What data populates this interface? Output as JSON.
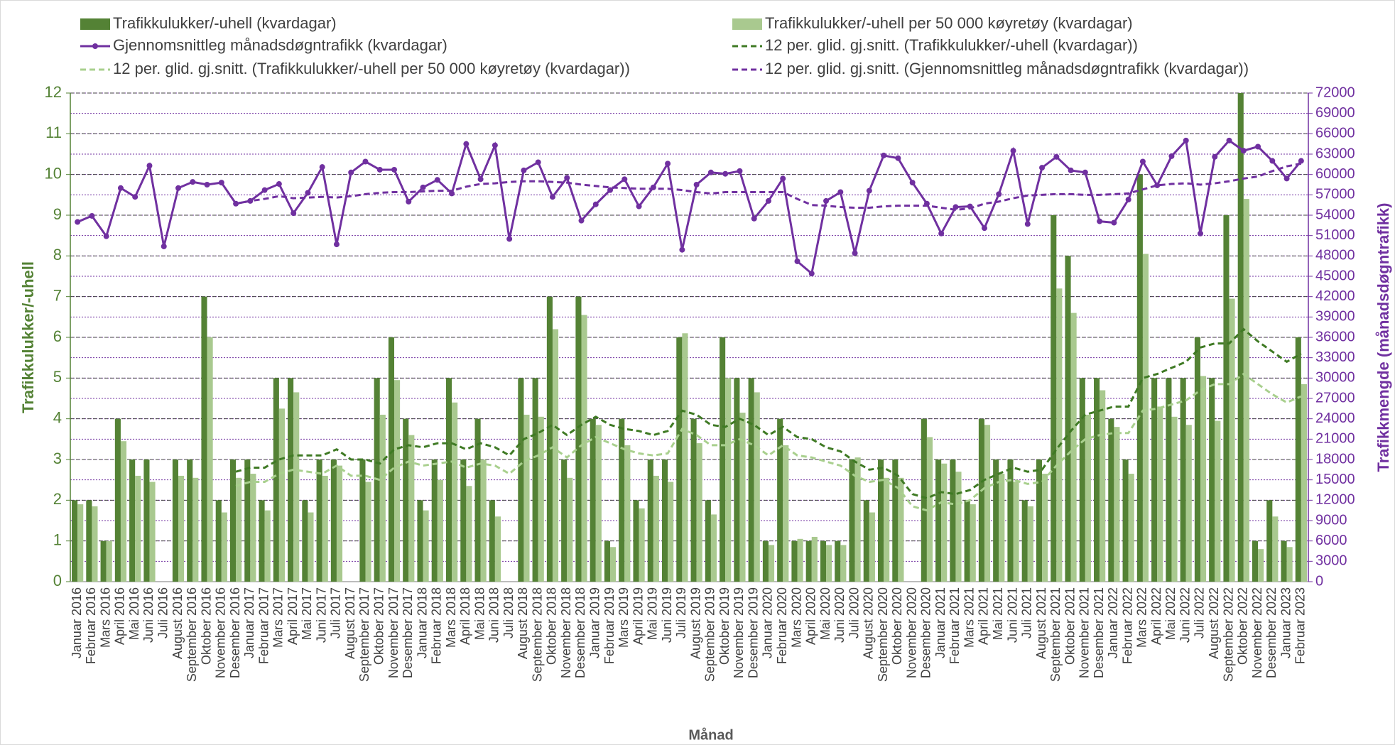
{
  "chart_data": {
    "type": "combo",
    "x_label": "Månad",
    "y_label": "Trafikkulukker/-uhell",
    "y2_label": "Trafikkmengde (månadsdøgntrafikk)",
    "categories": [
      "Januar 2016",
      "Februar 2016",
      "Mars 2016",
      "April 2016",
      "Mai 2016",
      "Juni 2016",
      "Juli 2016",
      "August 2016",
      "September 2016",
      "Oktober 2016",
      "November 2016",
      "Desember 2016",
      "Januar 2017",
      "Februar 2017",
      "Mars 2017",
      "April 2017",
      "Mai 2017",
      "Juni 2017",
      "Juli 2017",
      "August 2017",
      "September 2017",
      "Oktober 2017",
      "November 2017",
      "Desember 2017",
      "Januar 2018",
      "Februar 2018",
      "Mars 2018",
      "April 2018",
      "Mai 2018",
      "Juni 2018",
      "Juli 2018",
      "August 2018",
      "September 2018",
      "Oktober 2018",
      "November 2018",
      "Desember 2018",
      "Januar 2019",
      "Februar 2019",
      "Mars 2019",
      "April 2019",
      "Mai 2019",
      "Juni 2019",
      "Juli 2019",
      "August 2019",
      "September 2019",
      "Oktober 2019",
      "November 2019",
      "Desember 2019",
      "Januar 2020",
      "Februar 2020",
      "Mars 2020",
      "April 2020",
      "Mai 2020",
      "Juni 2020",
      "Juli 2020",
      "August 2020",
      "September 2020",
      "Oktober 2020",
      "November 2020",
      "Desember 2020",
      "Januar 2021",
      "Februar 2021",
      "Mars 2021",
      "April 2021",
      "Mai 2021",
      "Juni 2021",
      "Juli 2021",
      "August 2021",
      "September 2021",
      "Oktober 2021",
      "November 2021",
      "Desember 2021",
      "Januar 2022",
      "Februar 2022",
      "Mars 2022",
      "April 2022",
      "Mai 2022",
      "Juni 2022",
      "Juli 2022",
      "August 2022",
      "September 2022",
      "Oktober 2022",
      "November 2022",
      "Desember 2022",
      "Januar 2023",
      "Februar 2023"
    ],
    "ylim": [
      0,
      12
    ],
    "yticks": [
      0,
      1,
      2,
      3,
      4,
      5,
      6,
      7,
      8,
      9,
      10,
      11,
      12
    ],
    "y2lim": [
      0,
      72000
    ],
    "y2ticks": [
      0,
      3000,
      6000,
      9000,
      12000,
      15000,
      18000,
      21000,
      24000,
      27000,
      30000,
      33000,
      36000,
      39000,
      42000,
      45000,
      48000,
      51000,
      54000,
      57000,
      60000,
      63000,
      66000,
      69000,
      72000
    ],
    "grid": true,
    "series": [
      {
        "name": "Trafikkulukker/-uhell (kvardagar)",
        "kind": "bar",
        "color": "#548235",
        "values": [
          2,
          2,
          1,
          4,
          3,
          3,
          0,
          3,
          3,
          7,
          2,
          3,
          3,
          2,
          5,
          5,
          2,
          3,
          3,
          0,
          3,
          5,
          6,
          4,
          2,
          3,
          5,
          3,
          4,
          2,
          0,
          5,
          5,
          7,
          3,
          7,
          4,
          1,
          4,
          2,
          3,
          3,
          6,
          4,
          2,
          6,
          5,
          5,
          1,
          4,
          1,
          1,
          1,
          1,
          3,
          2,
          3,
          3,
          0,
          4,
          3,
          3,
          2,
          4,
          3,
          3,
          2,
          3,
          9,
          8,
          5,
          5,
          4,
          3,
          10,
          5,
          5,
          5,
          6,
          5,
          9,
          12,
          1,
          2,
          1,
          6
        ]
      },
      {
        "name": "Trafikkulukker/-uhell per 50 000 køyretøy (kvardagar)",
        "kind": "bar",
        "color": "#a9c98f",
        "values": [
          1.9,
          1.85,
          1.0,
          3.45,
          2.6,
          2.45,
          0,
          2.6,
          2.55,
          6.0,
          1.7,
          2.55,
          2.65,
          1.75,
          4.25,
          4.65,
          1.7,
          2.6,
          2.85,
          0,
          2.45,
          4.1,
          4.95,
          3.6,
          1.75,
          2.5,
          4.4,
          2.35,
          3.0,
          1.6,
          0,
          4.1,
          4.05,
          6.2,
          2.55,
          6.55,
          3.85,
          0.85,
          3.35,
          1.8,
          2.6,
          2.45,
          6.1,
          3.4,
          1.65,
          5.0,
          4.15,
          4.65,
          0.9,
          3.35,
          1.05,
          1.1,
          0.9,
          0.9,
          3.05,
          1.7,
          2.55,
          2.55,
          0,
          3.55,
          2.9,
          2.7,
          1.9,
          3.85,
          2.65,
          2.45,
          1.85,
          2.65,
          7.2,
          6.6,
          4.1,
          4.7,
          3.8,
          2.65,
          8.05,
          4.3,
          4.05,
          3.85,
          5.05,
          3.95,
          6.95,
          9.4,
          0.8,
          1.6,
          0.85,
          4.85
        ]
      },
      {
        "name": "Gjennomsnittleg månadsdøgntrafikk (kvardagar)",
        "kind": "line",
        "markers": true,
        "dashed": false,
        "axis": "y2",
        "color": "#7030a0",
        "values": [
          53000,
          53900,
          50900,
          58000,
          56700,
          61300,
          49400,
          58000,
          58900,
          58500,
          58800,
          55700,
          56100,
          57700,
          58600,
          54300,
          57300,
          61100,
          49700,
          60300,
          61900,
          60700,
          60700,
          56000,
          58100,
          59200,
          57200,
          64500,
          59300,
          64300,
          50500,
          60600,
          61800,
          56700,
          59500,
          53200,
          55600,
          57700,
          59300,
          55300,
          58100,
          61600,
          48900,
          58500,
          60300,
          60100,
          60500,
          53500,
          56100,
          59400,
          47200,
          45400,
          56100,
          57400,
          48400,
          57600,
          62800,
          62400,
          58800,
          55700,
          51300,
          55200,
          55300,
          52100,
          57100,
          63500,
          52700,
          61000,
          62600,
          60600,
          60300,
          53100,
          52900,
          56300,
          61900,
          58400,
          62700,
          65000,
          51300,
          62600,
          65000,
          63500,
          64100,
          62000,
          59400,
          62000
        ]
      },
      {
        "name": "12 per. glid. gj.snitt. (Trafikkulukker/-uhell (kvardagar))",
        "kind": "line",
        "markers": false,
        "dashed": true,
        "color": "#3f7a24",
        "values": [
          null,
          null,
          null,
          null,
          null,
          null,
          null,
          null,
          null,
          null,
          null,
          2.7,
          2.8,
          2.8,
          3.0,
          3.1,
          3.1,
          3.1,
          3.25,
          3.0,
          3.0,
          2.9,
          3.25,
          3.35,
          3.3,
          3.4,
          3.4,
          3.25,
          3.4,
          3.3,
          3.1,
          3.5,
          3.65,
          3.85,
          3.6,
          3.85,
          4.05,
          3.85,
          3.75,
          3.7,
          3.6,
          3.7,
          4.2,
          4.1,
          3.85,
          3.8,
          4.0,
          3.85,
          3.6,
          3.8,
          3.55,
          3.5,
          3.3,
          3.2,
          2.95,
          2.75,
          2.8,
          2.6,
          2.15,
          2.05,
          2.2,
          2.15,
          2.25,
          2.5,
          2.65,
          2.8,
          2.7,
          2.75,
          3.25,
          3.7,
          4.1,
          4.2,
          4.3,
          4.3,
          5.0,
          5.1,
          5.25,
          5.4,
          5.75,
          5.85,
          5.85,
          6.2,
          5.9,
          5.65,
          5.4,
          5.6
        ]
      },
      {
        "name": "12 per. glid. gj.snitt. (Trafikkulukker/-uhell per 50 000 køyretøy (kvardagar))",
        "kind": "line",
        "markers": false,
        "dashed": true,
        "color": "#a9d08e",
        "values": [
          null,
          null,
          null,
          null,
          null,
          null,
          null,
          null,
          null,
          null,
          null,
          2.35,
          2.45,
          2.45,
          2.65,
          2.75,
          2.7,
          2.65,
          2.85,
          2.6,
          2.6,
          2.5,
          2.8,
          2.95,
          2.85,
          2.9,
          2.95,
          2.8,
          2.9,
          2.85,
          2.65,
          2.95,
          3.1,
          3.3,
          3.05,
          3.35,
          3.55,
          3.4,
          3.25,
          3.15,
          3.1,
          3.15,
          3.75,
          3.6,
          3.35,
          3.35,
          3.5,
          3.35,
          3.1,
          3.35,
          3.1,
          3.05,
          2.95,
          2.85,
          2.6,
          2.45,
          2.5,
          2.3,
          1.85,
          1.75,
          1.95,
          1.9,
          2.0,
          2.3,
          2.45,
          2.5,
          2.4,
          2.45,
          2.85,
          3.2,
          3.5,
          3.6,
          3.65,
          3.65,
          4.2,
          4.25,
          4.35,
          4.45,
          4.7,
          4.85,
          4.85,
          5.1,
          4.85,
          4.6,
          4.4,
          4.55
        ]
      },
      {
        "name": "12 per. glid. gj.snitt. (Gjennomsnittleg månadsdøgntrafikk (kvardagar))",
        "kind": "line",
        "markers": false,
        "dashed": true,
        "axis": "y2",
        "color": "#7030a0",
        "values": [
          null,
          null,
          null,
          null,
          null,
          null,
          null,
          null,
          null,
          null,
          null,
          55700,
          56100,
          56400,
          56800,
          56500,
          56600,
          56700,
          56600,
          56800,
          57100,
          57300,
          57400,
          57400,
          57500,
          57600,
          57600,
          58200,
          58600,
          58700,
          58900,
          59000,
          59000,
          58900,
          58800,
          58500,
          58300,
          58100,
          58000,
          57900,
          57900,
          57900,
          57700,
          57400,
          57200,
          57400,
          57400,
          57400,
          57400,
          57400,
          56400,
          55500,
          55400,
          55200,
          55100,
          55100,
          55300,
          55400,
          55400,
          55400,
          55100,
          54800,
          55000,
          55700,
          56000,
          56500,
          56900,
          57000,
          57100,
          57100,
          57000,
          57000,
          57100,
          57200,
          57800,
          58400,
          58600,
          58700,
          58500,
          58700,
          59000,
          59400,
          59700,
          60500,
          61200,
          61600
        ]
      }
    ]
  }
}
